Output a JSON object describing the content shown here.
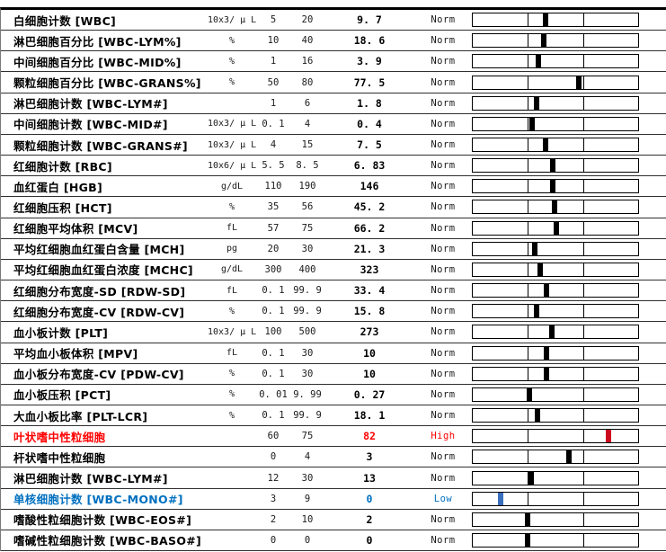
{
  "flag_colors": {
    "norm": {
      "name": "#000000",
      "value": "#000000",
      "status": "#1a1a1a",
      "marker": "#000000"
    },
    "high": {
      "name": "#ff0000",
      "value": "#ff0000",
      "status": "#ff0000",
      "marker": "#cc0a1e"
    },
    "low": {
      "name": "#0070c0",
      "value": "#0070c0",
      "status": "#0070c0",
      "marker": "#3a6fbe"
    }
  },
  "rows": [
    {
      "name": "白细胞计数 [WBC]",
      "unit": "10x3/ μ L",
      "low": "5",
      "high": "20",
      "value": "9. 7",
      "status": "Norm",
      "flag": "norm"
    },
    {
      "name": "淋巴细胞百分比 [WBC-LYM%]",
      "unit": "%",
      "low": "10",
      "high": "40",
      "value": "18. 6",
      "status": "Norm",
      "flag": "norm"
    },
    {
      "name": "中间细胞百分比 [WBC-MID%]",
      "unit": "%",
      "low": "1",
      "high": "16",
      "value": "3. 9",
      "status": "Norm",
      "flag": "norm"
    },
    {
      "name": "颗粒细胞百分比 [WBC-GRANS%]",
      "unit": "%",
      "low": "50",
      "high": "80",
      "value": "77. 5",
      "status": "Norm",
      "flag": "norm"
    },
    {
      "name": "淋巴细胞计数 [WBC-LYM#]",
      "unit": "",
      "low": "1",
      "high": "6",
      "value": "1. 8",
      "status": "Norm",
      "flag": "norm"
    },
    {
      "name": "中间细胞计数 [WBC-MID#]",
      "unit": "10x3/ μ L",
      "low": "0. 1",
      "high": "4",
      "value": "0. 4",
      "status": "Norm",
      "flag": "norm"
    },
    {
      "name": "颗粒细胞计数 [WBC-GRANS#]",
      "unit": "10x3/ μ L",
      "low": "4",
      "high": "15",
      "value": "7. 5",
      "status": "Norm",
      "flag": "norm"
    },
    {
      "name": "红细胞计数 [RBC]",
      "unit": "10x6/ μ L",
      "low": "5. 5",
      "high": "8. 5",
      "value": "6. 83",
      "status": "Norm",
      "flag": "norm"
    },
    {
      "name": "血红蛋白 [HGB]",
      "unit": "g/dL",
      "low": "110",
      "high": "190",
      "value": "146",
      "status": "Norm",
      "flag": "norm"
    },
    {
      "name": "红细胞压积 [HCT]",
      "unit": "%",
      "low": "35",
      "high": "56",
      "value": "45. 2",
      "status": "Norm",
      "flag": "norm"
    },
    {
      "name": "红细胞平均体积 [MCV]",
      "unit": "fL",
      "low": "57",
      "high": "75",
      "value": "66. 2",
      "status": "Norm",
      "flag": "norm"
    },
    {
      "name": "平均红细胞血红蛋白含量  [MCH]",
      "unit": "pg",
      "low": "20",
      "high": "30",
      "value": "21. 3",
      "status": "Norm",
      "flag": "norm"
    },
    {
      "name": "平均红细胞血红蛋白浓度  [MCHC]",
      "unit": "g/dL",
      "low": "300",
      "high": "400",
      "value": "323",
      "status": "Norm",
      "flag": "norm"
    },
    {
      "name": "红细胞分布宽度-SD [RDW-SD]",
      "unit": "fL",
      "low": "0. 1",
      "high": "99. 9",
      "value": "33. 4",
      "status": "Norm",
      "flag": "norm"
    },
    {
      "name": "红细胞分布宽度-CV [RDW-CV]",
      "unit": "%",
      "low": "0. 1",
      "high": "99. 9",
      "value": "15. 8",
      "status": "Norm",
      "flag": "norm"
    },
    {
      "name": "血小板计数 [PLT]",
      "unit": "10x3/ μ L",
      "low": "100",
      "high": "500",
      "value": "273",
      "status": "Norm",
      "flag": "norm"
    },
    {
      "name": "平均血小板体积 [MPV]",
      "unit": "fL",
      "low": "0. 1",
      "high": "30",
      "value": "10",
      "status": "Norm",
      "flag": "norm"
    },
    {
      "name": "血小板分布宽度-CV [PDW-CV]",
      "unit": "%",
      "low": "0. 1",
      "high": "30",
      "value": "10",
      "status": "Norm",
      "flag": "norm"
    },
    {
      "name": "血小板压积 [PCT]",
      "unit": "%",
      "low": "0. 01",
      "high": "9. 99",
      "value": "0. 27",
      "status": "Norm",
      "flag": "norm"
    },
    {
      "name": "大血小板比率 [PLT-LCR]",
      "unit": "%",
      "low": "0. 1",
      "high": "99. 9",
      "value": "18. 1",
      "status": "Norm",
      "flag": "norm"
    },
    {
      "name": "叶状嗜中性粒细胞",
      "unit": "",
      "low": "60",
      "high": "75",
      "value": "82",
      "status": "High",
      "flag": "high"
    },
    {
      "name": "杆状嗜中性粒细胞",
      "unit": "",
      "low": "0",
      "high": "4",
      "value": "3",
      "status": "Norm",
      "flag": "norm"
    },
    {
      "name": "淋巴细胞计数 [WBC-LYM#]",
      "unit": "",
      "low": "12",
      "high": "30",
      "value": "13",
      "status": "Norm",
      "flag": "norm"
    },
    {
      "name": "单核细胞计数 [WBC-MONO#]",
      "unit": "",
      "low": "3",
      "high": "9",
      "value": "0",
      "status": "Low",
      "flag": "low"
    },
    {
      "name": "嗜酸性粒细胞计数 [WBC-EOS#]",
      "unit": "",
      "low": "2",
      "high": "10",
      "value": "2",
      "status": "Norm",
      "flag": "norm"
    },
    {
      "name": "嗜碱性粒细胞计数 [WBC-BASO#]",
      "unit": "",
      "low": "0",
      "high": "0",
      "value": "0",
      "status": "Norm",
      "flag": "norm"
    }
  ]
}
